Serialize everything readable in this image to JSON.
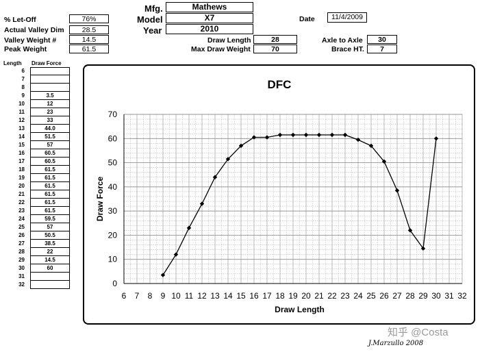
{
  "header": {
    "letoff_label": "% Let-Off",
    "letoff_value": "76%",
    "valley_dim_label": "Actual Valley Dim",
    "valley_dim_value": "28.5",
    "valley_weight_label": "Valley Weight #",
    "valley_weight_value": "14.5",
    "peak_weight_label": "Peak Weight",
    "peak_weight_value": "61.5",
    "mfg_label": "Mfg.",
    "mfg_value": "Mathews",
    "model_label": "Model",
    "model_value": "X7",
    "year_label": "Year",
    "year_value": "2010",
    "date_label": "Date",
    "date_value": "11/4/2009",
    "draw_length_label": "Draw Length",
    "draw_length_value": "28",
    "max_draw_weight_label": "Max Draw Weight",
    "max_draw_weight_value": "70",
    "axle_label": "Axle to Axle",
    "axle_value": "30",
    "brace_label": "Brace HT.",
    "brace_value": "7"
  },
  "table": {
    "length_header": "Length",
    "force_header": "Draw Force",
    "rows": [
      {
        "length": "6",
        "force": ""
      },
      {
        "length": "7",
        "force": ""
      },
      {
        "length": "8",
        "force": ""
      },
      {
        "length": "9",
        "force": "3.5"
      },
      {
        "length": "10",
        "force": "12"
      },
      {
        "length": "11",
        "force": "23"
      },
      {
        "length": "12",
        "force": "33"
      },
      {
        "length": "13",
        "force": "44.0"
      },
      {
        "length": "14",
        "force": "51.5"
      },
      {
        "length": "15",
        "force": "57"
      },
      {
        "length": "16",
        "force": "60.5"
      },
      {
        "length": "17",
        "force": "60.5"
      },
      {
        "length": "18",
        "force": "61.5"
      },
      {
        "length": "19",
        "force": "61.5"
      },
      {
        "length": "20",
        "force": "61.5"
      },
      {
        "length": "21",
        "force": "61.5"
      },
      {
        "length": "22",
        "force": "61.5"
      },
      {
        "length": "23",
        "force": "61.5"
      },
      {
        "length": "24",
        "force": "59.5"
      },
      {
        "length": "25",
        "force": "57"
      },
      {
        "length": "26",
        "force": "50.5"
      },
      {
        "length": "27",
        "force": "38.5"
      },
      {
        "length": "28",
        "force": "22"
      },
      {
        "length": "29",
        "force": "14.5"
      },
      {
        "length": "30",
        "force": "60"
      },
      {
        "length": "31",
        "force": ""
      },
      {
        "length": "32",
        "force": ""
      }
    ]
  },
  "chart_data": {
    "type": "line",
    "title": "DFC",
    "xlabel": "Draw Length",
    "ylabel": "Draw Force",
    "xlim": [
      6,
      32
    ],
    "ylim": [
      0,
      70
    ],
    "x_ticks": [
      6,
      7,
      8,
      9,
      10,
      11,
      12,
      13,
      14,
      15,
      16,
      17,
      18,
      19,
      20,
      21,
      22,
      23,
      24,
      25,
      26,
      27,
      28,
      29,
      30,
      31,
      32
    ],
    "y_ticks": [
      0,
      10,
      20,
      30,
      40,
      50,
      60,
      70
    ],
    "grid": true,
    "legend": "none",
    "series": [
      {
        "x": [
          9,
          10,
          11,
          12,
          13,
          14,
          15,
          16,
          17,
          18,
          19,
          20,
          21,
          22,
          23,
          24,
          25,
          26,
          27,
          28,
          29,
          30
        ],
        "y": [
          3.5,
          12,
          23,
          33,
          44,
          51.5,
          57,
          60.5,
          60.5,
          61.5,
          61.5,
          61.5,
          61.5,
          61.5,
          61.5,
          59.5,
          57,
          50.5,
          38.5,
          22,
          14.5,
          60
        ]
      }
    ]
  },
  "signature": "J.Marzullo 2008",
  "watermark": "知乎 @Costa"
}
